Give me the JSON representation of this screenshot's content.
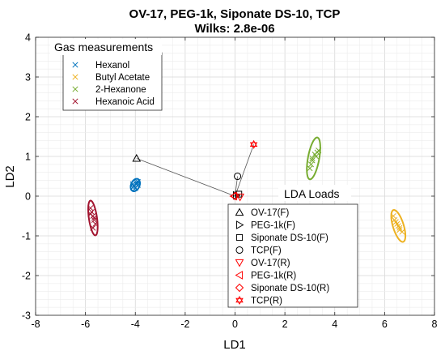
{
  "chart_data": {
    "type": "scatter",
    "title": "OV-17, PEG-1k, Siponate DS-10, TCP",
    "subtitle": "Wilks: 2.8e-06",
    "xlabel": "LD1",
    "ylabel": "LD2",
    "xlim": [
      -8,
      8
    ],
    "ylim": [
      -3,
      4
    ],
    "xticks": [
      "-8",
      "-6",
      "-4",
      "-2",
      "0",
      "2",
      "4",
      "6",
      "8"
    ],
    "yticks": [
      "-3",
      "-2",
      "-1",
      "0",
      "1",
      "2",
      "3",
      "4"
    ],
    "grid": true,
    "minor_grid": true,
    "gas_legend": {
      "title": "Gas measurements",
      "position": "top-left"
    },
    "series": [
      {
        "name": "Hexanol",
        "color": "#0072BD",
        "marker": "x",
        "ellipse": {
          "center": [
            -4.0,
            0.28
          ],
          "rx": 0.2,
          "ry": 0.14,
          "angle_deg": 30
        },
        "points": [
          [
            -4.1,
            0.3
          ],
          [
            -3.95,
            0.35
          ],
          [
            -4.0,
            0.2
          ],
          [
            -3.9,
            0.28
          ],
          [
            -4.05,
            0.25
          ],
          [
            -3.95,
            0.3
          ],
          [
            -4.1,
            0.22
          ],
          [
            -3.9,
            0.36
          ]
        ]
      },
      {
        "name": "Butyl Acetate",
        "color": "#EDB120",
        "marker": "x",
        "ellipse": {
          "center": [
            6.55,
            -0.75
          ],
          "rx": 0.45,
          "ry": 0.2,
          "angle_deg": -60
        },
        "points": [
          [
            6.4,
            -0.6
          ],
          [
            6.5,
            -0.7
          ],
          [
            6.6,
            -0.8
          ],
          [
            6.55,
            -0.75
          ],
          [
            6.7,
            -0.9
          ],
          [
            6.45,
            -0.65
          ],
          [
            6.6,
            -0.85
          ],
          [
            6.35,
            -0.5
          ]
        ]
      },
      {
        "name": "2-Hexanone",
        "color": "#77AC30",
        "marker": "x",
        "ellipse": {
          "center": [
            3.15,
            0.95
          ],
          "rx": 0.55,
          "ry": 0.22,
          "angle_deg": 72
        },
        "points": [
          [
            3.0,
            0.7
          ],
          [
            3.1,
            0.9
          ],
          [
            3.2,
            1.05
          ],
          [
            3.3,
            1.1
          ],
          [
            3.05,
            0.8
          ],
          [
            3.25,
            1.0
          ],
          [
            3.1,
            0.95
          ],
          [
            3.35,
            1.15
          ]
        ]
      },
      {
        "name": "Hexanoic Acid",
        "color": "#A2142F",
        "marker": "x",
        "ellipse": {
          "center": [
            -5.7,
            -0.55
          ],
          "rx": 0.45,
          "ry": 0.16,
          "angle_deg": -76
        },
        "points": [
          [
            -5.8,
            -0.3
          ],
          [
            -5.7,
            -0.5
          ],
          [
            -5.75,
            -0.4
          ],
          [
            -5.65,
            -0.6
          ],
          [
            -5.6,
            -0.7
          ],
          [
            -5.7,
            -0.8
          ],
          [
            -5.8,
            -0.45
          ],
          [
            -5.65,
            -0.55
          ]
        ]
      }
    ],
    "lda_loads": {
      "title": "LDA Loads",
      "position": "bottom-right",
      "items": [
        {
          "name": "OV-17(F)",
          "marker": "triangle-up",
          "color": "#000000",
          "point": [
            -3.95,
            0.95
          ]
        },
        {
          "name": "PEG-1k(F)",
          "marker": "triangle-right",
          "color": "#000000",
          "point": [
            0.05,
            0.02
          ]
        },
        {
          "name": "Siponate DS-10(F)",
          "marker": "square",
          "color": "#000000",
          "point": [
            0.15,
            0.05
          ]
        },
        {
          "name": "TCP(F)",
          "marker": "circle",
          "color": "#000000",
          "point": [
            0.1,
            0.5
          ]
        },
        {
          "name": "OV-17(R)",
          "marker": "triangle-down",
          "color": "#FF0000",
          "point": [
            0.2,
            -0.02
          ]
        },
        {
          "name": "PEG-1k(R)",
          "marker": "triangle-left",
          "color": "#FF0000",
          "point": [
            -0.05,
            0.0
          ]
        },
        {
          "name": "Siponate DS-10(R)",
          "marker": "diamond",
          "color": "#FF0000",
          "point": [
            0.0,
            0.0
          ]
        },
        {
          "name": "TCP(R)",
          "marker": "hexagram",
          "color": "#FF0000",
          "point": [
            0.75,
            1.3
          ]
        }
      ]
    }
  }
}
